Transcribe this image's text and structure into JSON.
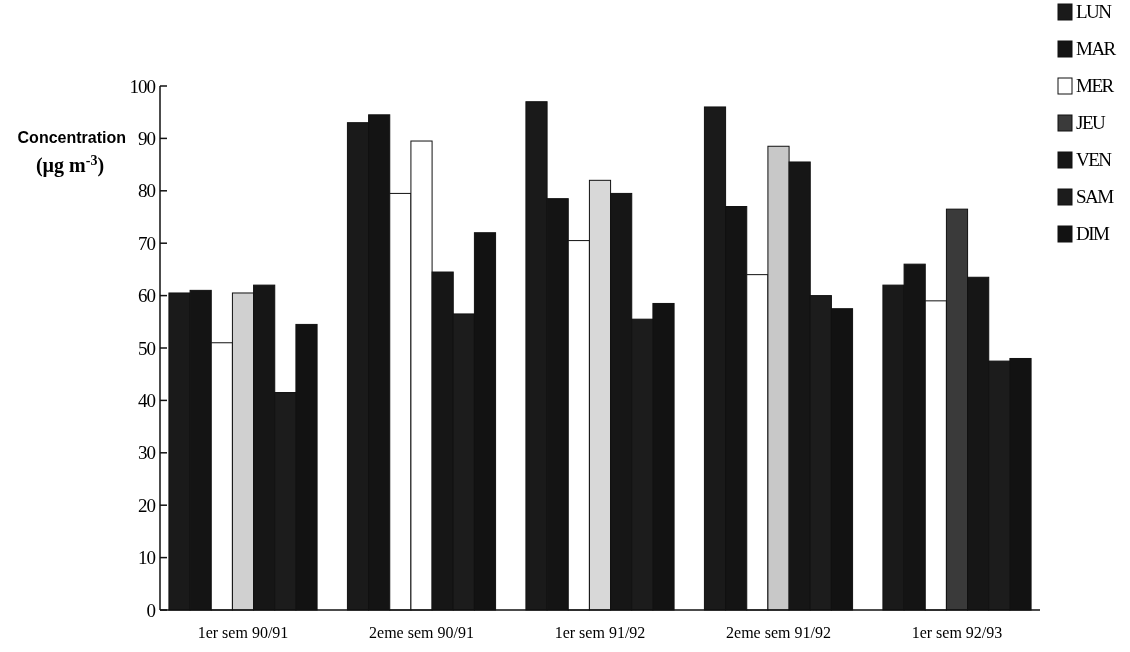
{
  "chart_data": {
    "type": "bar",
    "ylabel": "Concentration (µg m$^{-3}$)",
    "categories": [
      "1er sem 90/91",
      "2eme sem 90/91",
      "1er sem 91/92",
      "2eme sem 91/92",
      "1er sem 92/93"
    ],
    "series": [
      {
        "name": "LUN",
        "color": "#1a1a1a",
        "values": [
          60.5,
          93,
          97,
          96,
          62
        ]
      },
      {
        "name": "MAR",
        "color": "#141414",
        "values": [
          61,
          94.5,
          78.5,
          77,
          66
        ]
      },
      {
        "name": "MER",
        "color": "#ffffff",
        "values": [
          51,
          79.5,
          70.5,
          64,
          59
        ]
      },
      {
        "name": "JEU",
        "color": "#3a3a3a",
        "colors": [
          "#d0d0d0",
          "#ffffff",
          "#d8d8d8",
          "#c8c8c8",
          "#3a3a3a"
        ],
        "values": [
          60.5,
          89.5,
          82,
          88.5,
          76.5
        ]
      },
      {
        "name": "VEN",
        "color": "#161616",
        "values": [
          62,
          64.5,
          79.5,
          85.5,
          63.5
        ]
      },
      {
        "name": "SAM",
        "color": "#1c1c1c",
        "values": [
          41.5,
          56.5,
          55.5,
          60,
          47.5
        ]
      },
      {
        "name": "DIM",
        "color": "#121212",
        "values": [
          54.5,
          72,
          58.5,
          57.5,
          48
        ]
      }
    ],
    "ylim": [
      0,
      100
    ],
    "yticks": [
      0,
      10,
      20,
      30,
      40,
      50,
      60,
      70,
      80,
      90,
      100
    ],
    "grid": false,
    "legend": "top right"
  }
}
